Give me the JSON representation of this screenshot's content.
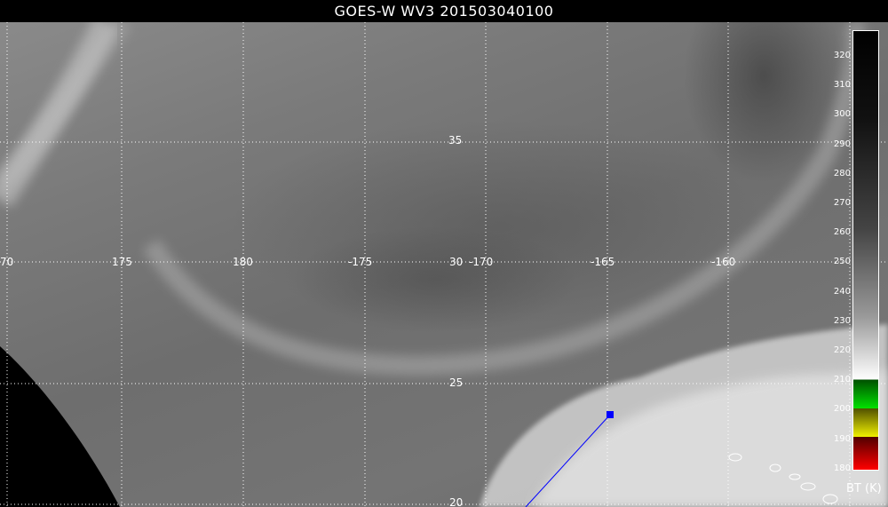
{
  "title": "GOES-W WV3 201503040100",
  "map": {
    "lat_labels": [
      "35",
      "30",
      "25",
      "20"
    ],
    "lon_labels": [
      "70",
      "175",
      "180",
      "-175",
      "-170",
      "-165",
      "-160"
    ],
    "grid": true,
    "marker_color": "#0000ff"
  },
  "colorbar": {
    "unit": "BT (K)",
    "ticks": [
      "320",
      "310",
      "300",
      "290",
      "280",
      "270",
      "260",
      "250",
      "240",
      "230",
      "220",
      "210",
      "200",
      "190",
      "180"
    ],
    "colors": [
      "#000000",
      "#ffffff",
      "#00e000",
      "#f0f000",
      "#ff0000"
    ]
  }
}
